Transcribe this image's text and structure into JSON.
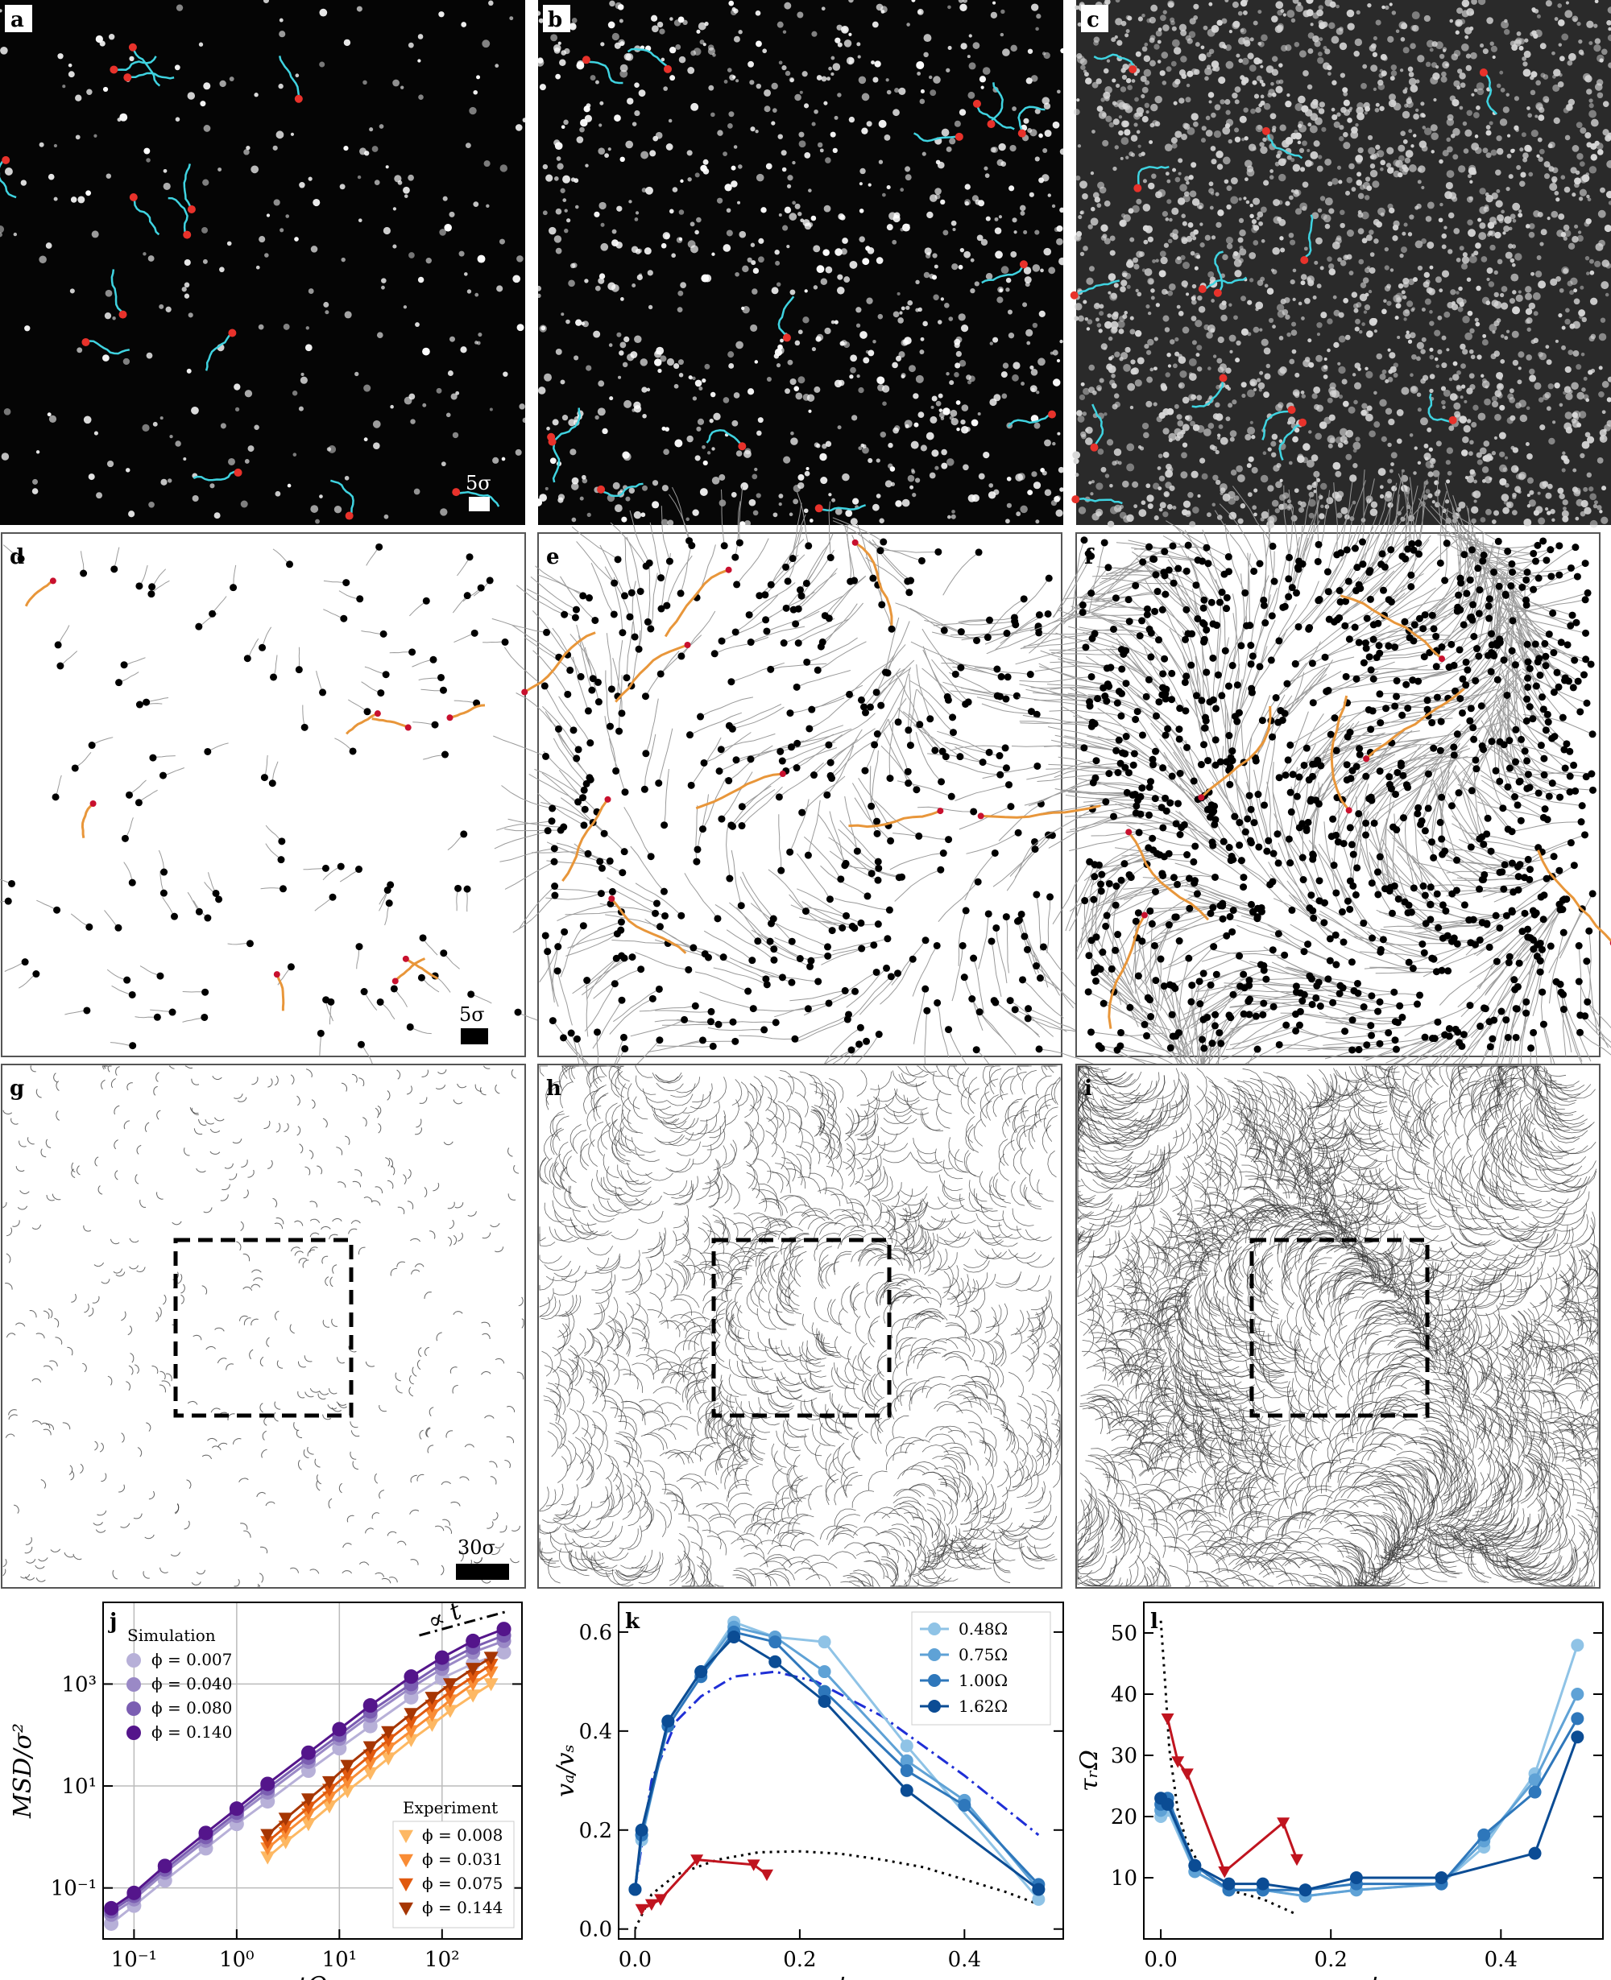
{
  "panels": {
    "a": {
      "label": "a",
      "scale": "5σ"
    },
    "b": {
      "label": "b"
    },
    "c": {
      "label": "c"
    },
    "d": {
      "label": "d",
      "scale": "5σ"
    },
    "e": {
      "label": "e"
    },
    "f": {
      "label": "f"
    },
    "g": {
      "label": "g",
      "scale": "30σ"
    },
    "h": {
      "label": "h"
    },
    "i": {
      "label": "i"
    }
  },
  "colors": {
    "trajectory_cyan": "#3fd3e0",
    "marker_red": "#e8322b",
    "sim_purple": [
      "#b7b0d8",
      "#9a89c6",
      "#7b5eb2",
      "#54158b"
    ],
    "exp_orange": [
      "#fdb863",
      "#f98c35",
      "#e0590f",
      "#a63603"
    ],
    "blue_series": [
      "#8fc3e6",
      "#5fa2d6",
      "#2e77bb",
      "#0b4c94"
    ],
    "red_series": "#c0141f"
  },
  "chart_data": [
    {
      "id": "j",
      "panel_label": "j",
      "type": "line",
      "xscale": "log",
      "yscale": "log",
      "xlabel": "tΩ",
      "ylabel": "MSD/σ²",
      "xlim": [
        0.05,
        600
      ],
      "ylim": [
        0.01,
        40000
      ],
      "x_ticks": [
        "10⁻¹",
        "10⁰",
        "10¹",
        "10²"
      ],
      "y_ticks": [
        "10⁻¹",
        "10¹",
        "10³"
      ],
      "annotation": "∝ t",
      "grid": true,
      "legend_sim_title": "Simulation",
      "legend_exp_title": "Experiment",
      "series": [
        {
          "name": "ϕ = 0.007",
          "group": "sim",
          "x": [
            0.06,
            0.1,
            0.2,
            0.5,
            1,
            2,
            5,
            10,
            20,
            50,
            100,
            200,
            400
          ],
          "y": [
            0.02,
            0.045,
            0.14,
            0.6,
            1.8,
            5,
            20,
            55,
            150,
            550,
            1300,
            2500,
            4200
          ]
        },
        {
          "name": "ϕ = 0.040",
          "group": "sim",
          "x": [
            0.06,
            0.1,
            0.2,
            0.5,
            1,
            2,
            5,
            10,
            20,
            50,
            100,
            200,
            400
          ],
          "y": [
            0.03,
            0.06,
            0.2,
            0.85,
            2.6,
            7.5,
            30,
            85,
            240,
            850,
            2000,
            4200,
            7000
          ]
        },
        {
          "name": "ϕ = 0.080",
          "group": "sim",
          "x": [
            0.06,
            0.1,
            0.2,
            0.5,
            1,
            2,
            5,
            10,
            20,
            50,
            100,
            200,
            400
          ],
          "y": [
            0.035,
            0.07,
            0.23,
            1.0,
            3.0,
            9,
            36,
            100,
            290,
            1000,
            2500,
            5200,
            9000
          ]
        },
        {
          "name": "ϕ = 0.140",
          "group": "sim",
          "x": [
            0.06,
            0.1,
            0.2,
            0.5,
            1,
            2,
            5,
            10,
            20,
            50,
            100,
            200,
            400
          ],
          "y": [
            0.04,
            0.08,
            0.27,
            1.2,
            3.6,
            11,
            45,
            130,
            380,
            1400,
            3300,
            7000,
            12000
          ]
        },
        {
          "name": "ϕ = 0.008",
          "group": "exp",
          "x": [
            2,
            3,
            5,
            8,
            12,
            20,
            30,
            50,
            80,
            120,
            200,
            300
          ],
          "y": [
            0.4,
            0.8,
            1.8,
            4,
            8,
            18,
            35,
            80,
            160,
            300,
            600,
            1000
          ]
        },
        {
          "name": "ϕ = 0.031",
          "group": "exp",
          "x": [
            2,
            3,
            5,
            8,
            12,
            20,
            30,
            50,
            80,
            120,
            200,
            300
          ],
          "y": [
            0.6,
            1.2,
            2.8,
            6,
            12,
            28,
            55,
            120,
            250,
            480,
            1000,
            1700
          ]
        },
        {
          "name": "ϕ = 0.075",
          "group": "exp",
          "x": [
            2,
            3,
            5,
            8,
            12,
            20,
            30,
            50,
            80,
            120,
            200,
            300
          ],
          "y": [
            0.8,
            1.6,
            3.8,
            8.5,
            17,
            40,
            80,
            180,
            380,
            700,
            1400,
            2400
          ]
        },
        {
          "name": "ϕ = 0.144",
          "group": "exp",
          "x": [
            2,
            3,
            5,
            8,
            12,
            20,
            30,
            50,
            80,
            120,
            200,
            300
          ],
          "y": [
            1.1,
            2.3,
            5.5,
            12,
            25,
            58,
            115,
            260,
            540,
            1000,
            2000,
            3300
          ]
        }
      ]
    },
    {
      "id": "k",
      "panel_label": "k",
      "type": "line",
      "xlabel": "ϕ",
      "ylabel": "vₐ/vₛ",
      "xlim": [
        -0.02,
        0.52
      ],
      "ylim": [
        -0.02,
        0.66
      ],
      "x_ticks": [
        "0.0",
        "0.2",
        "0.4"
      ],
      "y_ticks": [
        "0.0",
        "0.2",
        "0.4",
        "0.6"
      ],
      "legend_position": "top-right",
      "series": [
        {
          "name": "0.48Ω",
          "x": [
            0.0,
            0.008,
            0.04,
            0.08,
            0.12,
            0.17,
            0.23,
            0.33,
            0.49
          ],
          "y": [
            0.08,
            0.18,
            0.42,
            0.52,
            0.62,
            0.59,
            0.58,
            0.37,
            0.06
          ]
        },
        {
          "name": "0.75Ω",
          "x": [
            0.0,
            0.008,
            0.04,
            0.08,
            0.12,
            0.17,
            0.23,
            0.33,
            0.4,
            0.49
          ],
          "y": [
            0.08,
            0.19,
            0.42,
            0.52,
            0.61,
            0.59,
            0.52,
            0.34,
            0.26,
            0.08
          ]
        },
        {
          "name": "1.00Ω",
          "x": [
            0.0,
            0.008,
            0.04,
            0.08,
            0.12,
            0.17,
            0.23,
            0.33,
            0.4,
            0.49
          ],
          "y": [
            0.08,
            0.19,
            0.41,
            0.51,
            0.6,
            0.58,
            0.48,
            0.32,
            0.25,
            0.09
          ]
        },
        {
          "name": "1.62Ω",
          "x": [
            0.0,
            0.008,
            0.04,
            0.08,
            0.12,
            0.17,
            0.23,
            0.33,
            0.49
          ],
          "y": [
            0.08,
            0.2,
            0.42,
            0.52,
            0.59,
            0.54,
            0.46,
            0.28,
            0.08
          ]
        },
        {
          "name": "",
          "style": "experiment",
          "x": [
            0.008,
            0.02,
            0.031,
            0.075,
            0.144,
            0.16
          ],
          "y": [
            0.04,
            0.05,
            0.06,
            0.14,
            0.13,
            0.11
          ]
        }
      ],
      "theory_dashdot": {
        "x": [
          0.0,
          0.02,
          0.05,
          0.08,
          0.12,
          0.17,
          0.22,
          0.3,
          0.4,
          0.49
        ],
        "y": [
          0.08,
          0.3,
          0.42,
          0.47,
          0.51,
          0.52,
          0.5,
          0.43,
          0.31,
          0.19
        ]
      },
      "theory_dotted": {
        "x": [
          0.0,
          0.02,
          0.05,
          0.1,
          0.15,
          0.2,
          0.25,
          0.3,
          0.35,
          0.4,
          0.45,
          0.49
        ],
        "y": [
          0.0,
          0.07,
          0.11,
          0.14,
          0.155,
          0.157,
          0.152,
          0.14,
          0.125,
          0.1,
          0.075,
          0.05
        ]
      }
    },
    {
      "id": "l",
      "panel_label": "l",
      "type": "line",
      "xlabel": "ϕ",
      "ylabel": "τᵣΩ",
      "xlim": [
        -0.02,
        0.52
      ],
      "ylim": [
        0,
        55
      ],
      "x_ticks": [
        "0.0",
        "0.2",
        "0.4"
      ],
      "y_ticks": [
        "10",
        "20",
        "30",
        "40",
        "50"
      ],
      "series": [
        {
          "name": "0.48Ω",
          "x": [
            0.0,
            0.008,
            0.04,
            0.08,
            0.12,
            0.17,
            0.23,
            0.33,
            0.38,
            0.44,
            0.49
          ],
          "y": [
            20,
            21,
            11,
            8,
            8,
            7,
            8,
            9,
            15,
            27,
            48
          ]
        },
        {
          "name": "0.75Ω",
          "x": [
            0.0,
            0.008,
            0.04,
            0.08,
            0.12,
            0.17,
            0.23,
            0.33,
            0.38,
            0.44,
            0.49
          ],
          "y": [
            21,
            22,
            11,
            8,
            8,
            7,
            8,
            9,
            16,
            26,
            40
          ]
        },
        {
          "name": "1.00Ω",
          "x": [
            0.0,
            0.008,
            0.04,
            0.08,
            0.12,
            0.17,
            0.23,
            0.33,
            0.38,
            0.44,
            0.49
          ],
          "y": [
            22,
            23,
            12,
            8,
            8,
            8,
            9,
            9,
            17,
            24,
            36
          ]
        },
        {
          "name": "1.62Ω",
          "x": [
            0.0,
            0.008,
            0.04,
            0.08,
            0.12,
            0.17,
            0.23,
            0.33,
            0.44,
            0.49
          ],
          "y": [
            23,
            22,
            12,
            9,
            9,
            8,
            10,
            10,
            14,
            33
          ]
        },
        {
          "name": "",
          "style": "experiment",
          "x": [
            0.008,
            0.02,
            0.031,
            0.075,
            0.144,
            0.16
          ],
          "y": [
            36,
            29,
            27,
            11,
            19,
            13
          ]
        }
      ],
      "theory_dotted": {
        "x": [
          0.0,
          0.005,
          0.01,
          0.02,
          0.03,
          0.05,
          0.08,
          0.12,
          0.16
        ],
        "y": [
          52,
          42,
          31,
          21,
          16,
          11,
          8,
          6.5,
          4
        ]
      }
    }
  ]
}
